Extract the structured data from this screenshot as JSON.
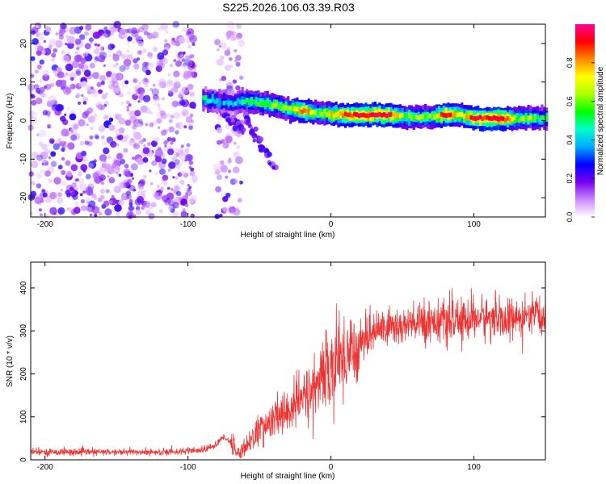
{
  "title": "S225.2026.106.03.39.R03",
  "chart_data": [
    {
      "type": "heatmap",
      "name": "spectrogram",
      "xlabel": "Height of straight line (km)",
      "ylabel": "Frequency (Hz)",
      "xlim": [
        -210,
        150
      ],
      "ylim": [
        -25,
        25
      ],
      "xticks": [
        -200,
        -100,
        0,
        100
      ],
      "yticks": [
        20,
        10,
        0,
        -10,
        -20
      ],
      "colorbar": {
        "label": "Normalized spectral amplitude",
        "range": [
          0,
          1
        ],
        "ticks": [
          0.0,
          0.2,
          0.4,
          0.6,
          0.8
        ],
        "colors": [
          "#ffffff",
          "#cc88ff",
          "#7700ee",
          "#0000ff",
          "#00aaff",
          "#00ffcc",
          "#00ff00",
          "#aaff00",
          "#ffff00",
          "#ff8800",
          "#ff0000",
          "#ff0099"
        ]
      },
      "carrier_track": [
        {
          "x": -90,
          "y": 5.5,
          "amp": 0.45
        },
        {
          "x": -80,
          "y": 5.0,
          "amp": 0.4
        },
        {
          "x": -70,
          "y": 4.5,
          "amp": 0.35
        },
        {
          "x": -60,
          "y": 5.0,
          "amp": 0.5
        },
        {
          "x": -50,
          "y": 4.5,
          "amp": 0.55
        },
        {
          "x": -40,
          "y": 4.0,
          "amp": 0.6
        },
        {
          "x": -30,
          "y": 3.0,
          "amp": 0.6
        },
        {
          "x": -20,
          "y": 2.5,
          "amp": 0.9
        },
        {
          "x": -10,
          "y": 2.0,
          "amp": 0.6
        },
        {
          "x": 0,
          "y": 1.5,
          "amp": 0.75
        },
        {
          "x": 10,
          "y": 1.5,
          "amp": 0.9
        },
        {
          "x": 20,
          "y": 1.5,
          "amp": 0.95
        },
        {
          "x": 30,
          "y": 1.5,
          "amp": 0.95
        },
        {
          "x": 40,
          "y": 1.5,
          "amp": 0.95
        },
        {
          "x": 50,
          "y": 1.0,
          "amp": 0.6
        },
        {
          "x": 60,
          "y": 1.0,
          "amp": 0.6
        },
        {
          "x": 70,
          "y": 1.0,
          "amp": 0.6
        },
        {
          "x": 80,
          "y": 1.5,
          "amp": 0.95
        },
        {
          "x": 90,
          "y": 1.5,
          "amp": 0.7
        },
        {
          "x": 100,
          "y": 0.5,
          "amp": 0.95
        },
        {
          "x": 110,
          "y": 0.5,
          "amp": 0.95
        },
        {
          "x": 120,
          "y": 0.5,
          "amp": 0.95
        },
        {
          "x": 130,
          "y": 0.5,
          "amp": 0.6
        },
        {
          "x": 140,
          "y": 0.5,
          "amp": 0.6
        },
        {
          "x": 150,
          "y": 0.5,
          "amp": 0.5
        }
      ]
    },
    {
      "type": "line",
      "name": "snr",
      "xlabel": "Height of straight line (km)",
      "ylabel": "SNR (10 * v/v)",
      "xlim": [
        -210,
        150
      ],
      "ylim": [
        0,
        460
      ],
      "xticks": [
        -200,
        -100,
        0,
        100
      ],
      "yticks": [
        0,
        100,
        200,
        300,
        400
      ],
      "series": [
        {
          "name": "SNR",
          "color": "#ee3333",
          "x": [
            -210,
            -200,
            -180,
            -160,
            -140,
            -120,
            -100,
            -90,
            -80,
            -75,
            -70,
            -65,
            -60,
            -50,
            -40,
            -30,
            -20,
            -10,
            0,
            10,
            20,
            30,
            40,
            50,
            60,
            70,
            80,
            90,
            100,
            110,
            120,
            130,
            140,
            150
          ],
          "values": [
            18,
            18,
            18,
            18,
            18,
            18,
            20,
            22,
            35,
            55,
            40,
            15,
            30,
            70,
            90,
            115,
            140,
            175,
            215,
            245,
            275,
            300,
            310,
            310,
            315,
            325,
            320,
            320,
            330,
            330,
            325,
            325,
            330,
            335
          ]
        }
      ]
    }
  ]
}
